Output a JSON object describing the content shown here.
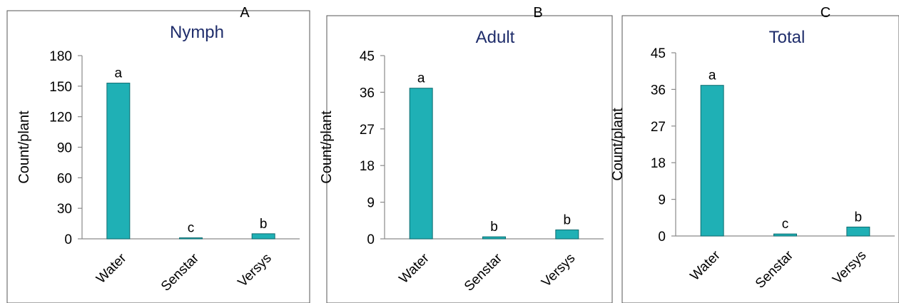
{
  "chart_data": [
    {
      "type": "bar",
      "panel_label": "A",
      "title": "Nymph",
      "ylabel": "Count/plant",
      "xlabel": "",
      "categories": [
        "Water",
        "Senstar",
        "Versys"
      ],
      "values": [
        153,
        1,
        5
      ],
      "data_labels": [
        "a",
        "c",
        "b"
      ],
      "ylim": [
        0,
        180
      ],
      "yticks": [
        0,
        30,
        60,
        90,
        120,
        150,
        180
      ],
      "bar_color": "#1fb0b5",
      "title_color": "#1f2d6b",
      "grid": false,
      "legend": "none"
    },
    {
      "type": "bar",
      "panel_label": "B",
      "title": "Adult",
      "ylabel": "Count/plant",
      "xlabel": "",
      "categories": [
        "Water",
        "Senstar",
        "Versys"
      ],
      "values": [
        37,
        0.5,
        2.2
      ],
      "data_labels": [
        "a",
        "b",
        "b"
      ],
      "ylim": [
        0,
        45
      ],
      "yticks": [
        0,
        9,
        18,
        27,
        36,
        45
      ],
      "bar_color": "#1fb0b5",
      "title_color": "#1f2d6b",
      "grid": false,
      "legend": "none"
    },
    {
      "type": "bar",
      "panel_label": "C",
      "title": "Total",
      "ylabel": "Count/plant",
      "xlabel": "",
      "categories": [
        "Water",
        "Senstar",
        "Versys"
      ],
      "values": [
        37,
        0.5,
        2.2
      ],
      "data_labels": [
        "a",
        "c",
        "b"
      ],
      "ylim": [
        0,
        45
      ],
      "yticks": [
        0,
        9,
        18,
        27,
        36,
        45
      ],
      "bar_color": "#1fb0b5",
      "title_color": "#1f2d6b",
      "grid": false,
      "legend": "none"
    }
  ]
}
